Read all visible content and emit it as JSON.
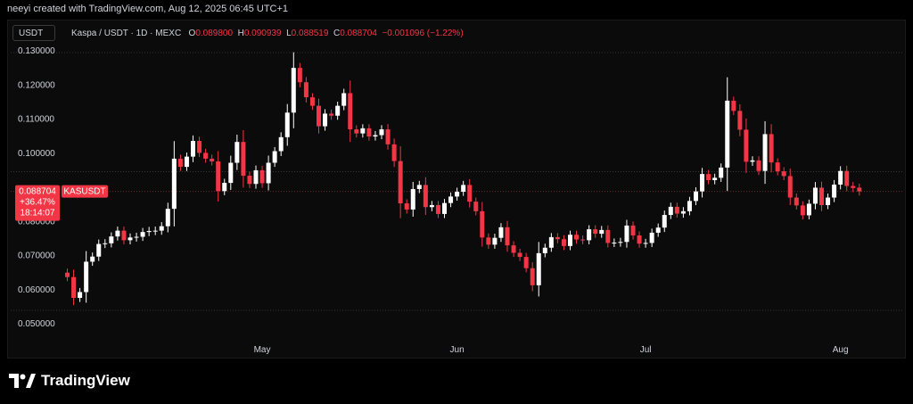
{
  "header": {
    "created_by": "neeyi created with TradingView.com, Aug 12, 2025 06:45 UTC+1",
    "currency_button": "USDT",
    "symbol_line": "Kaspa / USDT · 1D · MEXC",
    "ohlc": {
      "o_label": "O",
      "o": "0.089800",
      "h_label": "H",
      "h": "0.090939",
      "l_label": "L",
      "l": "0.088519",
      "c_label": "C",
      "c": "0.088704",
      "change": "−0.001096 (−1.22%)"
    }
  },
  "price_tag": {
    "price": "0.088704",
    "change_pct": "+36.47%",
    "countdown": "18:14:07",
    "symbol": "KASUSDT"
  },
  "brand": {
    "name": "TradingView"
  },
  "colors": {
    "up": "#ffffff",
    "down": "#f23645",
    "background": "#0b0b0b",
    "tag": "#f23645"
  },
  "chart_data": {
    "type": "candlestick",
    "ylim": [
      0.046,
      0.132
    ],
    "yticks": [
      "0.130000",
      "0.120000",
      "0.110000",
      "0.100000",
      "0.080000",
      "0.070000",
      "0.060000",
      "0.050000"
    ],
    "ytick_values": [
      0.13,
      0.12,
      0.11,
      0.1,
      0.08,
      0.07,
      0.06,
      0.05
    ],
    "month_labels": [
      {
        "label": "May",
        "index": 31
      },
      {
        "label": "Jun",
        "index": 62
      },
      {
        "label": "Jul",
        "index": 92
      },
      {
        "label": "Aug",
        "index": 123
      }
    ],
    "last_price": 0.088704,
    "dotted_levels": [
      0.0945,
      0.0887
    ],
    "close": [
      0.0636,
      0.0575,
      0.0592,
      0.0681,
      0.0696,
      0.0733,
      0.0735,
      0.0755,
      0.0772,
      0.0744,
      0.0752,
      0.0754,
      0.0768,
      0.0771,
      0.0772,
      0.0785,
      0.0836,
      0.0983,
      0.0959,
      0.0989,
      0.1035,
      0.1,
      0.0983,
      0.0975,
      0.0888,
      0.0912,
      0.0971,
      0.1032,
      0.0933,
      0.0909,
      0.0949,
      0.0911,
      0.0971,
      0.1005,
      0.1046,
      0.1118,
      0.1249,
      0.1207,
      0.1163,
      0.1138,
      0.1078,
      0.1115,
      0.1109,
      0.1138,
      0.1175,
      0.1069,
      0.1057,
      0.1072,
      0.1048,
      0.1052,
      0.1069,
      0.1025,
      0.0976,
      0.0852,
      0.0834,
      0.0894,
      0.0906,
      0.0841,
      0.0847,
      0.0821,
      0.0853,
      0.0872,
      0.0886,
      0.0906,
      0.0857,
      0.0829,
      0.0752,
      0.0731,
      0.0751,
      0.0782,
      0.0729,
      0.0707,
      0.0695,
      0.0662,
      0.0612,
      0.0706,
      0.0722,
      0.0753,
      0.0747,
      0.0727,
      0.076,
      0.0746,
      0.0744,
      0.0776,
      0.0763,
      0.0774,
      0.0736,
      0.0737,
      0.0739,
      0.0787,
      0.0758,
      0.0734,
      0.0736,
      0.0766,
      0.0781,
      0.0818,
      0.0842,
      0.0822,
      0.0829,
      0.0859,
      0.0887,
      0.0938,
      0.092,
      0.0927,
      0.0957,
      0.1153,
      0.1123,
      0.1068,
      0.0974,
      0.0978,
      0.0947,
      0.1055,
      0.0972,
      0.0946,
      0.0932,
      0.0869,
      0.0846,
      0.0817,
      0.0851,
      0.0898,
      0.0847,
      0.0869,
      0.0907,
      0.0947,
      0.0903,
      0.0897,
      0.0887
    ],
    "open": [
      0.0649,
      0.0636,
      0.0575,
      0.0592,
      0.0681,
      0.0696,
      0.0733,
      0.0735,
      0.0755,
      0.0772,
      0.0744,
      0.0752,
      0.0754,
      0.0768,
      0.0771,
      0.0772,
      0.0785,
      0.0836,
      0.0983,
      0.0959,
      0.0989,
      0.1035,
      0.1,
      0.0983,
      0.0975,
      0.0888,
      0.0912,
      0.0971,
      0.1032,
      0.0933,
      0.0909,
      0.0949,
      0.0911,
      0.0971,
      0.1005,
      0.1046,
      0.1118,
      0.1249,
      0.1207,
      0.1163,
      0.1138,
      0.1078,
      0.1115,
      0.1109,
      0.1138,
      0.1175,
      0.1069,
      0.1057,
      0.1072,
      0.1048,
      0.1052,
      0.1069,
      0.1025,
      0.0976,
      0.0852,
      0.0834,
      0.0894,
      0.0906,
      0.0841,
      0.0847,
      0.0821,
      0.0853,
      0.0872,
      0.0886,
      0.0906,
      0.0857,
      0.0829,
      0.0752,
      0.0731,
      0.0751,
      0.0782,
      0.0729,
      0.0707,
      0.0695,
      0.0662,
      0.0612,
      0.0706,
      0.0722,
      0.0753,
      0.0747,
      0.0727,
      0.076,
      0.0746,
      0.0744,
      0.0776,
      0.0763,
      0.0774,
      0.0736,
      0.0737,
      0.0739,
      0.0787,
      0.0758,
      0.0734,
      0.0736,
      0.0766,
      0.0781,
      0.0818,
      0.0842,
      0.0822,
      0.0829,
      0.0859,
      0.0887,
      0.0938,
      0.092,
      0.0927,
      0.0957,
      0.1153,
      0.1123,
      0.1068,
      0.0974,
      0.0978,
      0.0947,
      0.1055,
      0.0972,
      0.0946,
      0.0932,
      0.0869,
      0.0846,
      0.0817,
      0.0851,
      0.0898,
      0.0847,
      0.0869,
      0.0907,
      0.0947,
      0.0903,
      0.0898
    ]
  }
}
